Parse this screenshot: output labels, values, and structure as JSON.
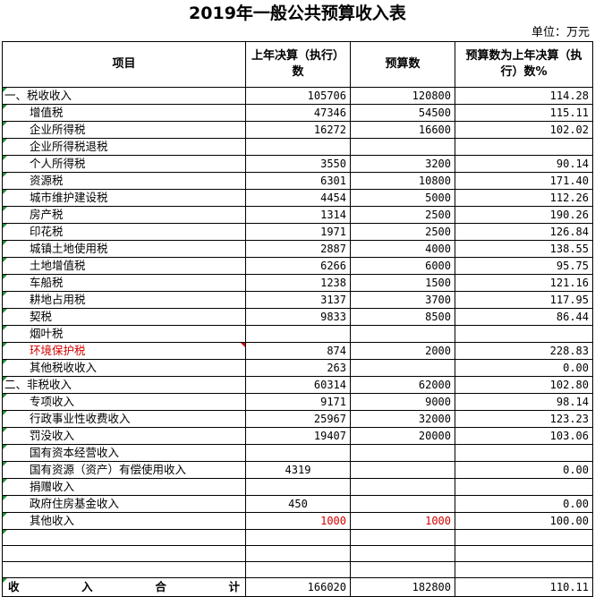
{
  "title": "2019年一般公共预算收入表",
  "unit": "单位：万元",
  "headers": {
    "item": "项目",
    "prev": "上年决算（执行）数",
    "budget": "预算数",
    "ratio": "预算数为上年决算（执行）数%"
  },
  "rows": [
    {
      "name": "一、税收收入",
      "prev": "105706",
      "budget": "120800",
      "ratio": "114.28"
    },
    {
      "name": "增值税",
      "prev": "47346",
      "budget": "54500",
      "ratio": "115.11"
    },
    {
      "name": "企业所得税",
      "prev": "16272",
      "budget": "16600",
      "ratio": "102.02"
    },
    {
      "name": "企业所得税退税",
      "prev": "",
      "budget": "",
      "ratio": ""
    },
    {
      "name": "个人所得税",
      "prev": "3550",
      "budget": "3200",
      "ratio": "90.14"
    },
    {
      "name": "资源税",
      "prev": "6301",
      "budget": "10800",
      "ratio": "171.40"
    },
    {
      "name": "城市维护建设税",
      "prev": "4454",
      "budget": "5000",
      "ratio": "112.26"
    },
    {
      "name": "房产税",
      "prev": "1314",
      "budget": "2500",
      "ratio": "190.26"
    },
    {
      "name": "印花税",
      "prev": "1971",
      "budget": "2500",
      "ratio": "126.84"
    },
    {
      "name": "城镇土地使用税",
      "prev": "2887",
      "budget": "4000",
      "ratio": "138.55"
    },
    {
      "name": "土地增值税",
      "prev": "6266",
      "budget": "6000",
      "ratio": "95.75"
    },
    {
      "name": "车船税",
      "prev": "1238",
      "budget": "1500",
      "ratio": "121.16"
    },
    {
      "name": "耕地占用税",
      "prev": "3137",
      "budget": "3700",
      "ratio": "117.95"
    },
    {
      "name": "契税",
      "prev": "9833",
      "budget": "8500",
      "ratio": "86.44"
    },
    {
      "name": "烟叶税",
      "prev": "",
      "budget": "",
      "ratio": ""
    },
    {
      "name": "环境保护税",
      "prev": "874",
      "budget": "2000",
      "ratio": "228.83"
    },
    {
      "name": "其他税收收入",
      "prev": "263",
      "budget": "",
      "ratio": "0.00"
    },
    {
      "name": "二、非税收入",
      "prev": "60314",
      "budget": "62000",
      "ratio": "102.80"
    },
    {
      "name": "专项收入",
      "prev": "9171",
      "budget": "9000",
      "ratio": "98.14"
    },
    {
      "name": "行政事业性收费收入",
      "prev": "25967",
      "budget": "32000",
      "ratio": "123.23"
    },
    {
      "name": "罚没收入",
      "prev": "19407",
      "budget": "20000",
      "ratio": "103.06"
    },
    {
      "name": "国有资本经营收入",
      "prev": "",
      "budget": "",
      "ratio": ""
    },
    {
      "name": "国有资源（资产）有偿使用收入",
      "prev": "4319",
      "budget": "",
      "ratio": "0.00"
    },
    {
      "name": "捐赠收入",
      "prev": "",
      "budget": "",
      "ratio": ""
    },
    {
      "name": "政府住房基金收入",
      "prev": "450",
      "budget": "",
      "ratio": "0.00"
    },
    {
      "name": "其他收入",
      "prev": "1000",
      "budget": "1000",
      "ratio": "100.00"
    }
  ],
  "total": {
    "label_chars": [
      "收",
      "入",
      "合",
      "计"
    ],
    "prev": "166020",
    "budget": "182800",
    "ratio": "110.11"
  },
  "colors": {
    "marker": "#1f8f3a",
    "highlight": "#d40000"
  }
}
